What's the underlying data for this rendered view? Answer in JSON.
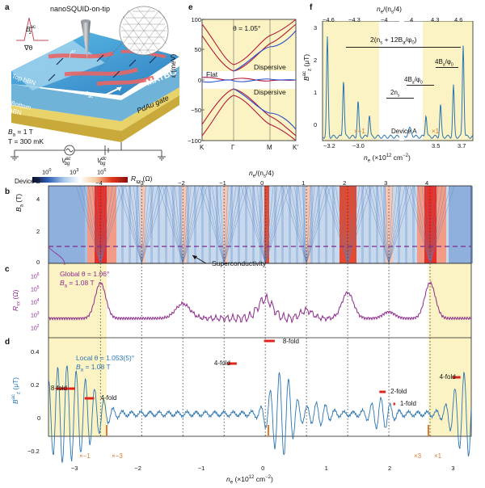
{
  "panels": {
    "a": {
      "label": "a",
      "title": "nanoSQUID-on-tip",
      "b_ac_label": "B",
      "b_ac_sup": "ac",
      "b_ac_sub": "z",
      "grad_label": "∇θ",
      "top_hbn": "Top hBN",
      "bottom_hbn": "Bottom hBN",
      "matbg": "MATBG",
      "gate": "PdAu gate",
      "r_ac": "r",
      "r_ac_sub": "ac",
      "j_label": "j",
      "j_sup": "AT",
      "v_ac": "V",
      "v_ac_sup": "ac",
      "v_ac_sub": "bg",
      "v_dc": "V",
      "v_dc_sup": "dc",
      "v_dc_sub": "bg",
      "ba_value": "B",
      "ba_sub": "a",
      "ba_text": " = 1 T",
      "temp": "T = 300 mK"
    },
    "e": {
      "label": "e",
      "theta": "θ = 1.05°",
      "flat": "Flat",
      "dispersive_top": "Dispersive",
      "dispersive_bottom": "Dispersive",
      "ylabel": "ε (meV)",
      "yticks": [
        "100",
        "50",
        "0",
        "−50",
        "−100"
      ],
      "xticks": [
        "K",
        "Γ",
        "M",
        "K′"
      ]
    },
    "f": {
      "label": "f",
      "top_ticks": [
        "−4.6",
        "−4.3",
        "−4",
        "4",
        "4.3",
        "4.6"
      ],
      "top_axis_label": "n",
      "top_axis_label_tail": "/(n",
      "top_axis_label_tail2": "/4)",
      "bottom_ticks": [
        "−3.2",
        "−3.0",
        "3.5",
        "3.7"
      ],
      "bottom_axis_label": "n",
      "bottom_axis_unit": " (×10",
      "bottom_axis_unit2": "12",
      "bottom_axis_unit3": " cm",
      "yticks": [
        "3",
        "2",
        "1",
        "0"
      ],
      "ylabel": "B",
      "annot_main": "2(n",
      "annot_main2": " + 12B",
      "annot_main3": "/φ",
      "annot_main4": ")",
      "annot_4b": "4B",
      "annot_4b2": "/φ",
      "annot_2ns": "2n",
      "device": "Device A",
      "left_tag": "×−1",
      "right_tag": "×1"
    },
    "colorbar": {
      "ticks": [
        "10",
        "10",
        "10"
      ],
      "exps": [
        "0",
        "3",
        "6"
      ],
      "label": "R",
      "label_sub": "xx",
      "unit": " (Ω)"
    },
    "b": {
      "label": "b",
      "device": "Device B",
      "top_axis_label": "n",
      "top_axis_label_tail": "/(n",
      "top_axis_label_tail2": "/4)",
      "top_ticks": [
        "−4",
        "−3",
        "−2",
        "−1",
        "0",
        "1",
        "2",
        "3",
        "4"
      ],
      "yticks": [
        "4",
        "2",
        "0"
      ],
      "ylabel": "B",
      "ylabel_sub": "a",
      "ylabel_unit": " (T)",
      "superconductivity": "Superconductivity"
    },
    "c": {
      "label": "c",
      "global": "Global θ = 1.06°",
      "ba": "B",
      "ba_sub": "a",
      "ba_text": " = 1.08 T",
      "ylabel": "R",
      "ylabel_sub": "xx",
      "ylabel_unit": " (Ω)",
      "yticks_exp": [
        "6",
        "5",
        "4",
        "3",
        "2"
      ]
    },
    "d": {
      "label": "d",
      "local": "Local θ = 1.053(5)°",
      "ba": "B",
      "ba_sub": "a",
      "ba_text": " = 1.08 T",
      "fold_labels": [
        "8-fold",
        "4-fold",
        "4-fold",
        "8-fold",
        "2-fold",
        "1-fold",
        "4-fold"
      ],
      "yticks": [
        "0.4",
        "0.2",
        "0",
        "−0.2"
      ],
      "ylabel": "B",
      "ylabel_unit": " (μT)",
      "xticks": [
        "−3",
        "−2",
        "−1",
        "0",
        "1",
        "2",
        "3"
      ],
      "xlabel": "n",
      "xlabel_unit": " (×10",
      "xlabel_unit2": "12",
      "xlabel_unit3": " cm",
      "tag_left": "×−1",
      "tag_left2": "×−3",
      "tag_right": "×3",
      "tag_right2": "×1"
    }
  },
  "colors": {
    "yellow": "#fbf3c4",
    "purple": "#8e2a8c",
    "blue": "#2a75b3",
    "red": "#e0241b",
    "orange": "#e07a2c",
    "bandRed": "#b3173b",
    "bandBlue": "#2c4fd0"
  }
}
